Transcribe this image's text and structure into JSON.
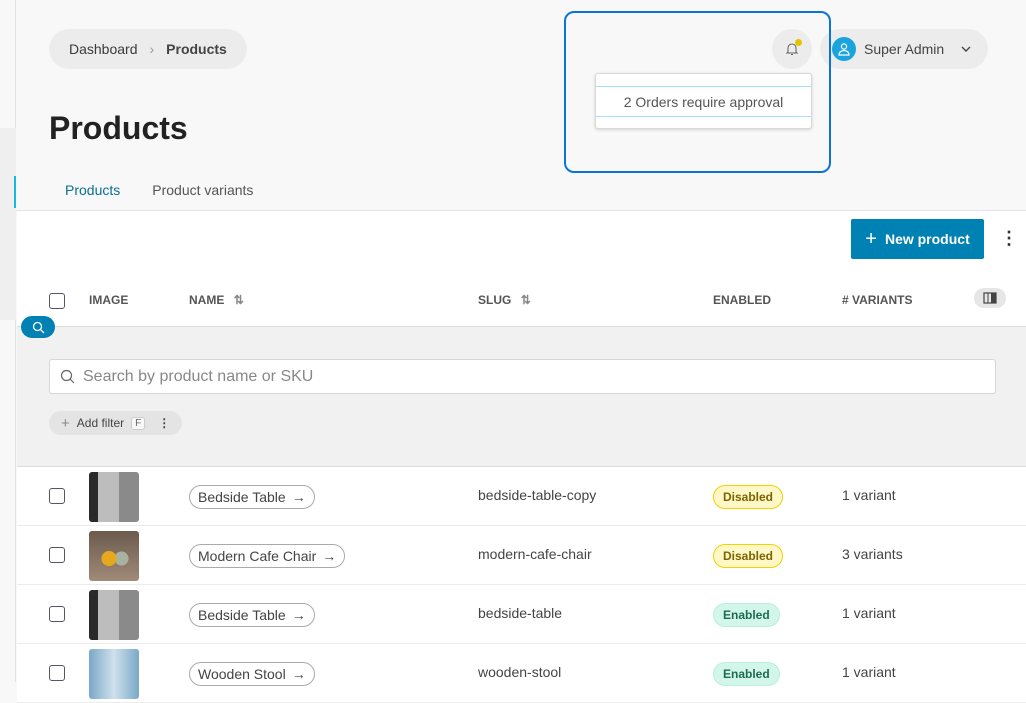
{
  "breadcrumb": {
    "items": [
      "Dashboard",
      "Products"
    ]
  },
  "page_title": "Products",
  "tabs": [
    {
      "label": "Products",
      "active": true
    },
    {
      "label": "Product variants",
      "active": false
    }
  ],
  "toolbar": {
    "new_product_label": "New product"
  },
  "table": {
    "headers": {
      "image": "IMAGE",
      "name": "NAME",
      "slug": "SLUG",
      "enabled": "ENABLED",
      "variants": "# VARIANTS"
    },
    "rows": [
      {
        "name": "Bedside Table",
        "slug": "bedside-table-copy",
        "status": "Disabled",
        "variants": "1 variant",
        "image": "bedside-table-photo"
      },
      {
        "name": "Modern Cafe Chair",
        "slug": "modern-cafe-chair",
        "status": "Disabled",
        "variants": "3 variants",
        "image": "cafe-chair-photo"
      },
      {
        "name": "Bedside Table",
        "slug": "bedside-table",
        "status": "Enabled",
        "variants": "1 variant",
        "image": "bedside-table-photo"
      },
      {
        "name": "Wooden Stool",
        "slug": "wooden-stool",
        "status": "Enabled",
        "variants": "1 variant",
        "image": "wooden-stool-photo"
      }
    ]
  },
  "search": {
    "placeholder": "Search by product name or SKU",
    "value": ""
  },
  "filter": {
    "add_label": "Add filter",
    "shortcut": "F"
  },
  "user": {
    "name": "Super Admin"
  },
  "notifications": {
    "items": [
      "2 Orders require approval"
    ],
    "has_unread": true
  },
  "colors": {
    "accent": "#0081b4",
    "highlight": "#0a74da",
    "disabled_badge": "#fff8c6",
    "enabled_badge": "#d2f6ea"
  }
}
